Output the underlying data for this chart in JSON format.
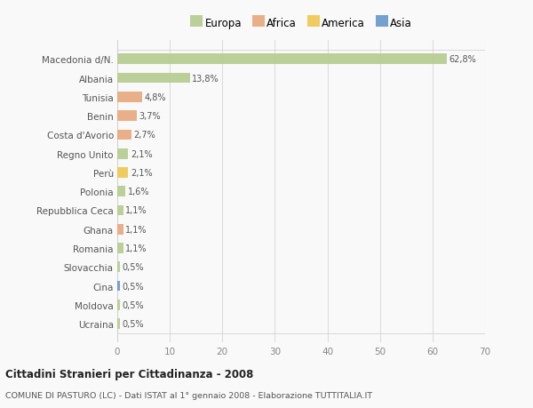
{
  "countries": [
    "Macedonia d/N.",
    "Albania",
    "Tunisia",
    "Benin",
    "Costa d'Avorio",
    "Regno Unito",
    "Perù",
    "Polonia",
    "Repubblica Ceca",
    "Ghana",
    "Romania",
    "Slovacchia",
    "Cina",
    "Moldova",
    "Ucraina"
  ],
  "values": [
    62.8,
    13.8,
    4.8,
    3.7,
    2.7,
    2.1,
    2.1,
    1.6,
    1.1,
    1.1,
    1.1,
    0.5,
    0.5,
    0.5,
    0.5
  ],
  "labels": [
    "62,8%",
    "13,8%",
    "4,8%",
    "3,7%",
    "2,7%",
    "2,1%",
    "2,1%",
    "1,6%",
    "1,1%",
    "1,1%",
    "1,1%",
    "0,5%",
    "0,5%",
    "0,5%",
    "0,5%"
  ],
  "colors": [
    "#b5cc8e",
    "#b5cc8e",
    "#e8a87c",
    "#e8a87c",
    "#e8a87c",
    "#b5cc8e",
    "#f0c84e",
    "#b5cc8e",
    "#b5cc8e",
    "#e8a87c",
    "#b5cc8e",
    "#b5cc8e",
    "#6699cc",
    "#b5cc8e",
    "#b5cc8e"
  ],
  "legend_labels": [
    "Europa",
    "Africa",
    "America",
    "Asia"
  ],
  "legend_colors": [
    "#b5cc8e",
    "#e8a87c",
    "#f0c84e",
    "#6699cc"
  ],
  "title": "Cittadini Stranieri per Cittadinanza - 2008",
  "subtitle": "COMUNE DI PASTURO (LC) - Dati ISTAT al 1° gennaio 2008 - Elaborazione TUTTITALIA.IT",
  "xlim": [
    0,
    70
  ],
  "xticks": [
    0,
    10,
    20,
    30,
    40,
    50,
    60,
    70
  ],
  "bg_color": "#f9f9f9",
  "grid_color": "#dddddd"
}
